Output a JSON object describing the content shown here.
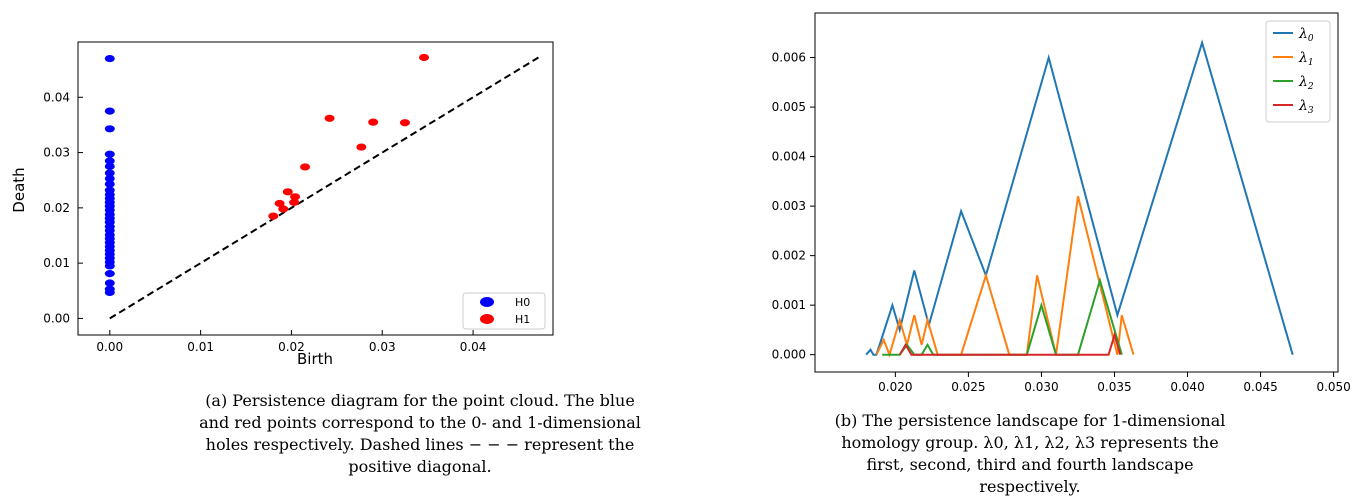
{
  "captions": {
    "a": "(a) Persistence diagram for the point cloud. The blue and red points correspond to the 0- and 1-dimensional holes respectively. Dashed lines − − − represent the positive diagonal.",
    "b": "(b) The persistence landscape for 1-dimensional homology group. λ0, λ1, λ2, λ3 represents the first, second, third and fourth landscape respectively."
  },
  "chart_data": [
    {
      "type": "scatter",
      "title": "",
      "xlabel": "Birth",
      "ylabel": "Death",
      "xlim": [
        -0.0035,
        0.0488
      ],
      "ylim": [
        -0.003,
        0.05
      ],
      "xticks": [
        0.0,
        0.01,
        0.02,
        0.03,
        0.04
      ],
      "yticks": [
        0.0,
        0.01,
        0.02,
        0.03,
        0.04
      ],
      "xtick_labels": [
        "0.00",
        "0.01",
        "0.02",
        "0.03",
        "0.04"
      ],
      "ytick_labels": [
        "0.00",
        "0.01",
        "0.02",
        "0.03",
        "0.04"
      ],
      "grid": false,
      "legend_position": "bottom-right",
      "series": [
        {
          "name": "H0",
          "color": "#0000ff",
          "points": [
            [
              0,
              0.047
            ],
            [
              0,
              0.0375
            ],
            [
              0,
              0.0343
            ],
            [
              0,
              0.0297
            ],
            [
              0,
              0.0285
            ],
            [
              0,
              0.0275
            ],
            [
              0,
              0.0263
            ],
            [
              0,
              0.0253
            ],
            [
              0,
              0.0243
            ],
            [
              0,
              0.0232
            ],
            [
              0,
              0.0224
            ],
            [
              0,
              0.0217
            ],
            [
              0,
              0.021
            ],
            [
              0,
              0.0203
            ],
            [
              0,
              0.0196
            ],
            [
              0,
              0.0188
            ],
            [
              0,
              0.0181
            ],
            [
              0,
              0.0174
            ],
            [
              0,
              0.0166
            ],
            [
              0,
              0.0159
            ],
            [
              0,
              0.0151
            ],
            [
              0,
              0.0144
            ],
            [
              0,
              0.0137
            ],
            [
              0,
              0.013
            ],
            [
              0,
              0.0123
            ],
            [
              0,
              0.0116
            ],
            [
              0,
              0.0109
            ],
            [
              0,
              0.0102
            ],
            [
              0,
              0.0095
            ],
            [
              0,
              0.0081
            ],
            [
              0,
              0.0064
            ],
            [
              0,
              0.0053
            ],
            [
              0,
              0.0047
            ]
          ]
        },
        {
          "name": "H1",
          "color": "#ff0000",
          "points": [
            [
              0.018,
              0.0185
            ],
            [
              0.0187,
              0.0208
            ],
            [
              0.0191,
              0.0198
            ],
            [
              0.0196,
              0.0229
            ],
            [
              0.0203,
              0.021
            ],
            [
              0.0204,
              0.022
            ],
            [
              0.0215,
              0.0274
            ],
            [
              0.0242,
              0.0362
            ],
            [
              0.0277,
              0.031
            ],
            [
              0.029,
              0.0355
            ],
            [
              0.0325,
              0.0354
            ],
            [
              0.0346,
              0.0472
            ]
          ]
        },
        {
          "name": "diagonal",
          "style": "dashed",
          "color": "#000000",
          "line": [
            [
              0,
              0
            ],
            [
              0.0472,
              0.0472
            ]
          ]
        }
      ]
    },
    {
      "type": "line",
      "title": "",
      "xlabel": "",
      "ylabel": "",
      "xlim": [
        0.0145,
        0.0503
      ],
      "ylim": [
        -0.00035,
        0.0069
      ],
      "xticks": [
        0.02,
        0.025,
        0.03,
        0.035,
        0.04,
        0.045,
        0.05
      ],
      "yticks": [
        0.0,
        0.001,
        0.002,
        0.003,
        0.004,
        0.005,
        0.006
      ],
      "xtick_labels": [
        "0.020",
        "0.025",
        "0.030",
        "0.035",
        "0.040",
        "0.045",
        "0.050"
      ],
      "ytick_labels": [
        "0.000",
        "0.001",
        "0.002",
        "0.003",
        "0.004",
        "0.005",
        "0.006"
      ],
      "grid": false,
      "legend_position": "top-right",
      "series": [
        {
          "name": "λ0",
          "color": "#1f77b4",
          "points": [
            [
              0.018,
              0.0
            ],
            [
              0.0183,
              0.0001
            ],
            [
              0.0185,
              0.0
            ],
            [
              0.0187,
              0.0
            ],
            [
              0.0198,
              0.001
            ],
            [
              0.0203,
              0.0005
            ],
            [
              0.0213,
              0.0017
            ],
            [
              0.0223,
              0.0006
            ],
            [
              0.0245,
              0.0029
            ],
            [
              0.0262,
              0.0016
            ],
            [
              0.0305,
              0.006
            ],
            [
              0.0352,
              0.0008
            ],
            [
              0.041,
              0.0063
            ],
            [
              0.0472,
              0.0
            ]
          ]
        },
        {
          "name": "λ1",
          "color": "#ff7f0e",
          "points": [
            [
              0.0187,
              0.0
            ],
            [
              0.0192,
              0.0003
            ],
            [
              0.0196,
              0.0
            ],
            [
              0.0203,
              0.0007
            ],
            [
              0.0208,
              0.0002
            ],
            [
              0.0213,
              0.0008
            ],
            [
              0.0218,
              0.0002
            ],
            [
              0.0222,
              0.0007
            ],
            [
              0.0229,
              0.0
            ],
            [
              0.0245,
              0.0
            ],
            [
              0.0262,
              0.0016
            ],
            [
              0.0278,
              0.0
            ],
            [
              0.029,
              0.0
            ],
            [
              0.0297,
              0.0016
            ],
            [
              0.031,
              0.0
            ],
            [
              0.0325,
              0.0032
            ],
            [
              0.0352,
              0.0
            ],
            [
              0.0355,
              0.0008
            ],
            [
              0.0363,
              0.0
            ]
          ]
        },
        {
          "name": "λ2",
          "color": "#2ca02c",
          "points": [
            [
              0.0191,
              0.0
            ],
            [
              0.0203,
              0.0
            ],
            [
              0.0208,
              0.0002
            ],
            [
              0.0213,
              0.0
            ],
            [
              0.0218,
              0.0
            ],
            [
              0.0222,
              0.0002
            ],
            [
              0.0226,
              0.0
            ],
            [
              0.029,
              0.0
            ],
            [
              0.03,
              0.001
            ],
            [
              0.031,
              0.0
            ],
            [
              0.0325,
              0.0
            ],
            [
              0.034,
              0.0015
            ],
            [
              0.0355,
              0.0
            ]
          ]
        },
        {
          "name": "λ3",
          "color": "#d62728",
          "points": [
            [
              0.0203,
              0.0
            ],
            [
              0.0207,
              0.0002
            ],
            [
              0.0211,
              0.0
            ],
            [
              0.0346,
              0.0
            ],
            [
              0.035,
              0.0004
            ],
            [
              0.0354,
              0.0
            ]
          ]
        }
      ]
    }
  ]
}
